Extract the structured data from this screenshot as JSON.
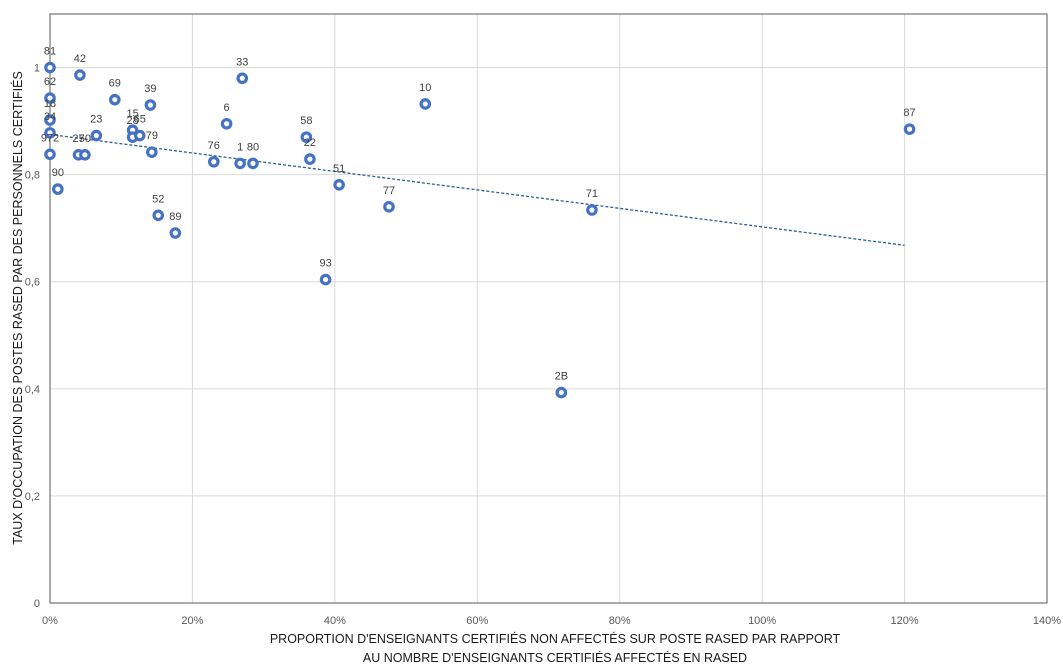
{
  "chart_data": {
    "type": "scatter",
    "title": "",
    "xlabel_lines": [
      "PROPORTION D'ENSEIGNANTS CERTIFIÉS NON AFFECTÉS SUR POSTE RASED PAR RAPPORT",
      "AU NOMBRE D'ENSEIGNANTS CERTIFIÉS AFFECTÉS EN RASED"
    ],
    "ylabel": "TAUX D'OCCUPATION DES POSTES RASED PAR DES PERSONNELS CERTIFIÉS",
    "xlim": [
      0,
      1.4
    ],
    "ylim": [
      0,
      1.1
    ],
    "x_ticks": [
      0,
      0.2,
      0.4,
      0.6,
      0.8,
      1.0,
      1.2,
      1.4
    ],
    "x_tick_labels": [
      "0%",
      "20%",
      "40%",
      "60%",
      "80%",
      "100%",
      "120%",
      "140%"
    ],
    "y_ticks": [
      0,
      0.2,
      0.4,
      0.6,
      0.8,
      1.0
    ],
    "y_tick_labels": [
      "0",
      "0,2",
      "0,4",
      "0,6",
      "0,8",
      "1"
    ],
    "grid": "vertical-and-horizontal",
    "legend": "none",
    "marker_color": "#4472C4",
    "trendline": {
      "style": "dashed",
      "color": "#2E5E8C",
      "x": [
        0,
        1.2
      ],
      "y": [
        0.875,
        0.668
      ]
    },
    "points": [
      {
        "label": "81",
        "x": 0.0,
        "y": 1.0
      },
      {
        "label": "62",
        "x": 0.0,
        "y": 0.943
      },
      {
        "label": "18",
        "x": 0.0,
        "y": 0.902
      },
      {
        "label": "34",
        "x": 0.0,
        "y": 0.878
      },
      {
        "label": "972",
        "x": 0.0,
        "y": 0.838
      },
      {
        "label": "90",
        "x": 0.011,
        "y": 0.773
      },
      {
        "label": "42",
        "x": 0.042,
        "y": 0.986
      },
      {
        "label": "27",
        "x": 0.04,
        "y": 0.837
      },
      {
        "label": "50",
        "x": 0.049,
        "y": 0.837
      },
      {
        "label": "23",
        "x": 0.065,
        "y": 0.873
      },
      {
        "label": "69",
        "x": 0.091,
        "y": 0.94
      },
      {
        "label": "15",
        "x": 0.116,
        "y": 0.883
      },
      {
        "label": "28",
        "x": 0.116,
        "y": 0.87
      },
      {
        "label": "65",
        "x": 0.126,
        "y": 0.873
      },
      {
        "label": "39",
        "x": 0.141,
        "y": 0.93
      },
      {
        "label": "79",
        "x": 0.143,
        "y": 0.842
      },
      {
        "label": "52",
        "x": 0.152,
        "y": 0.724
      },
      {
        "label": "89",
        "x": 0.176,
        "y": 0.691
      },
      {
        "label": "76",
        "x": 0.23,
        "y": 0.824
      },
      {
        "label": "6",
        "x": 0.248,
        "y": 0.895
      },
      {
        "label": "1",
        "x": 0.267,
        "y": 0.821
      },
      {
        "label": "33",
        "x": 0.27,
        "y": 0.98
      },
      {
        "label": "80",
        "x": 0.285,
        "y": 0.821
      },
      {
        "label": "58",
        "x": 0.36,
        "y": 0.87
      },
      {
        "label": "22",
        "x": 0.365,
        "y": 0.829
      },
      {
        "label": "93",
        "x": 0.387,
        "y": 0.604
      },
      {
        "label": "51",
        "x": 0.406,
        "y": 0.781
      },
      {
        "label": "77",
        "x": 0.476,
        "y": 0.74
      },
      {
        "label": "10",
        "x": 0.527,
        "y": 0.932
      },
      {
        "label": "2B",
        "x": 0.718,
        "y": 0.393
      },
      {
        "label": "71",
        "x": 0.761,
        "y": 0.734
      },
      {
        "label": "87",
        "x": 1.207,
        "y": 0.885
      }
    ]
  }
}
